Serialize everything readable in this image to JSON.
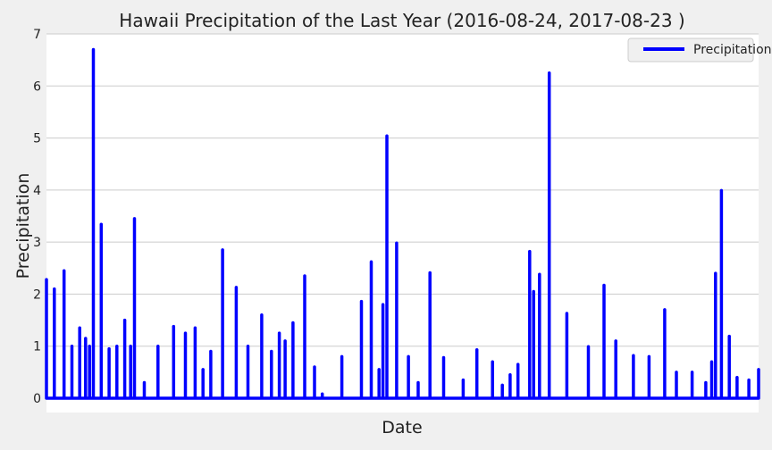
{
  "chart_data": {
    "type": "line",
    "title": "Hawaii Precipitation of the Last Year (2016-08-24, 2017-08-23 )",
    "xlabel": "Date",
    "ylabel": "Precipitation",
    "ylim": [
      0,
      7
    ],
    "xlim": [
      "2016-08-24",
      "2017-08-23"
    ],
    "yticks": [
      "0",
      "1",
      "2",
      "3",
      "4",
      "5",
      "6",
      "7"
    ],
    "xticks": [],
    "grid": "y",
    "legend": "top-right",
    "colors": {
      "line": "#0000ff",
      "plot_bg": "#ffffff",
      "figure_bg": "#f0f0f0",
      "grid": "#cbcbcb"
    },
    "series": [
      {
        "name": "Precipitation",
        "x": [
          "2016-08-24",
          "2016-08-28",
          "2016-09-02",
          "2016-09-06",
          "2016-09-10",
          "2016-09-13",
          "2016-09-15",
          "2016-09-17",
          "2016-09-21",
          "2016-09-25",
          "2016-09-29",
          "2016-10-03",
          "2016-10-06",
          "2016-10-08",
          "2016-10-13",
          "2016-10-20",
          "2016-10-28",
          "2016-11-03",
          "2016-11-08",
          "2016-11-12",
          "2016-11-16",
          "2016-11-22",
          "2016-11-29",
          "2016-12-05",
          "2016-12-12",
          "2016-12-17",
          "2016-12-21",
          "2016-12-24",
          "2016-12-28",
          "2017-01-03",
          "2017-01-08",
          "2017-01-12",
          "2017-01-22",
          "2017-02-01",
          "2017-02-06",
          "2017-02-10",
          "2017-02-12",
          "2017-02-14",
          "2017-02-19",
          "2017-02-25",
          "2017-03-02",
          "2017-03-08",
          "2017-03-15",
          "2017-03-25",
          "2017-04-01",
          "2017-04-09",
          "2017-04-14",
          "2017-04-18",
          "2017-04-22",
          "2017-04-28",
          "2017-04-30",
          "2017-05-03",
          "2017-05-08",
          "2017-05-17",
          "2017-05-28",
          "2017-06-05",
          "2017-06-11",
          "2017-06-20",
          "2017-06-28",
          "2017-07-06",
          "2017-07-12",
          "2017-07-20",
          "2017-07-27",
          "2017-07-30",
          "2017-08-01",
          "2017-08-04",
          "2017-08-08",
          "2017-08-12",
          "2017-08-18",
          "2017-08-23"
        ],
        "y": [
          2.28,
          2.1,
          2.45,
          1.0,
          1.35,
          1.15,
          1.0,
          6.7,
          3.34,
          0.95,
          1.0,
          1.5,
          1.0,
          3.45,
          0.3,
          1.0,
          1.38,
          1.25,
          1.35,
          0.55,
          0.9,
          2.85,
          2.13,
          1.0,
          1.6,
          0.9,
          1.25,
          1.1,
          1.45,
          2.35,
          0.6,
          0.08,
          0.8,
          1.86,
          2.62,
          0.55,
          1.8,
          5.04,
          2.98,
          0.8,
          0.3,
          2.41,
          0.78,
          0.35,
          0.93,
          0.7,
          0.25,
          0.45,
          0.65,
          2.82,
          2.05,
          2.38,
          6.25,
          1.63,
          0.99,
          2.17,
          1.1,
          0.82,
          0.8,
          1.7,
          0.5,
          0.5,
          0.3,
          0.7,
          2.4,
          3.99,
          1.19,
          0.4,
          0.35,
          0.55
        ]
      }
    ]
  }
}
